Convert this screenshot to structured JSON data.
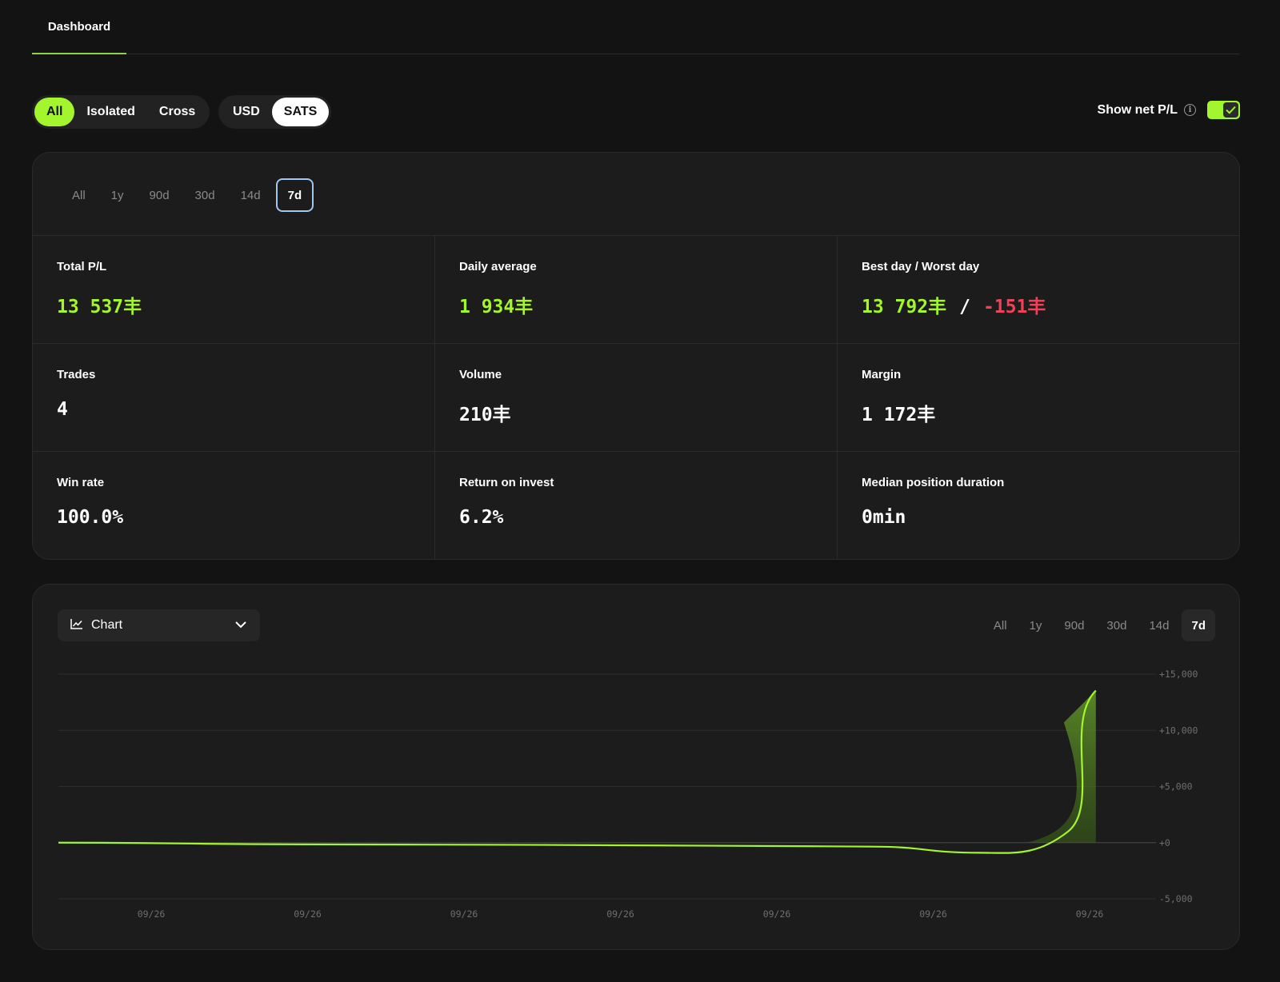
{
  "nav": {
    "dashboard_tab": "Dashboard"
  },
  "margin_filter": {
    "options": [
      "All",
      "Isolated",
      "Cross"
    ],
    "selected": "All"
  },
  "currency_filter": {
    "options": [
      "USD",
      "SATS"
    ],
    "selected": "SATS"
  },
  "net_pl": {
    "label": "Show net P/L",
    "info_icon": "info-icon",
    "enabled": true
  },
  "stats_periods": {
    "options": [
      "All",
      "1y",
      "90d",
      "30d",
      "14d",
      "7d"
    ],
    "selected": "7d"
  },
  "stats": {
    "total_pl": {
      "label": "Total P/L",
      "value": "13 537"
    },
    "daily_average": {
      "label": "Daily average",
      "value": "1 934"
    },
    "best_worst": {
      "label": "Best day / Worst day",
      "best": "13 792",
      "separator": "/",
      "worst": "-151"
    },
    "trades": {
      "label": "Trades",
      "value": "4"
    },
    "volume": {
      "label": "Volume",
      "value": "210"
    },
    "margin": {
      "label": "Margin",
      "value": "1 172"
    },
    "win_rate": {
      "label": "Win rate",
      "value": "100.0%"
    },
    "roi": {
      "label": "Return on invest",
      "value": "6.2%"
    },
    "median_duration": {
      "label": "Median position duration",
      "value": "0min"
    },
    "sats_symbol": "丰"
  },
  "chart_controls": {
    "view_select": {
      "label": "Chart",
      "icon": "line-chart-icon"
    },
    "periods": [
      "All",
      "1y",
      "90d",
      "30d",
      "14d",
      "7d"
    ],
    "selected": "7d"
  },
  "colors": {
    "accent": "#a3f52d",
    "negative": "#ef4259",
    "background": "#131313",
    "card": "#1c1c1c"
  },
  "chart_data": {
    "type": "area",
    "x": [
      "09/26",
      "09/26",
      "09/26",
      "09/26",
      "09/26",
      "09/26",
      "09/26"
    ],
    "series": [
      {
        "values": [
          0,
          -150,
          -200,
          -300,
          -350,
          -900,
          13537
        ]
      }
    ],
    "y_ticks": [
      "+15,000",
      "+10,000",
      "+5,000",
      "+0",
      "-5,000"
    ],
    "ylim": [
      -5000,
      15000
    ],
    "grid": true,
    "y_axis_position": "right"
  }
}
